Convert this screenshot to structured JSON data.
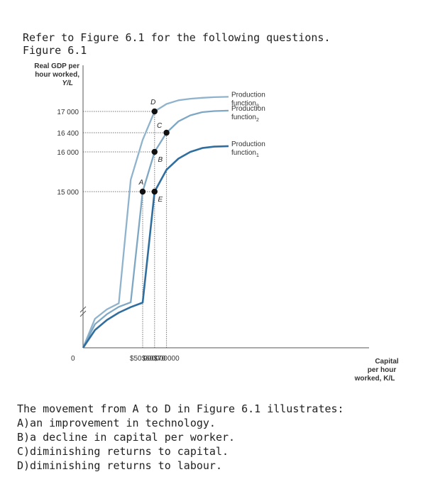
{
  "intro": {
    "line1": "Refer to Figure 6.1 for the following questions.",
    "line2": "Figure 6.1"
  },
  "chart_data": {
    "type": "line",
    "ylabel_lines": [
      "Real GDP per",
      "hour worked,",
      "Y/L"
    ],
    "xlabel_lines": [
      "Capital",
      "per hour",
      "worked, K/L"
    ],
    "origin_label": "0",
    "y_ticks": [
      {
        "value": 17000,
        "label": "17 000"
      },
      {
        "value": 16400,
        "label": "16 400"
      },
      {
        "value": 16000,
        "label": "16 000"
      },
      {
        "value": 15000,
        "label": "15 000"
      }
    ],
    "x_ticks": [
      {
        "value": 50000,
        "label": "$50 000"
      },
      {
        "value": 60000,
        "label": "$60 000"
      },
      {
        "value": 70000,
        "label": "$70 000"
      }
    ],
    "y_axis_break": true,
    "series": [
      {
        "name": "Production function",
        "subscript": "3",
        "color": "#8fb3cc",
        "x": [
          0,
          10000,
          20000,
          30000,
          40000,
          50000,
          60000,
          70000,
          80000,
          90000,
          100000,
          110000,
          122000
        ],
        "y": [
          0,
          9000,
          11900,
          13800,
          15300,
          16250,
          17000,
          17380,
          17570,
          17650,
          17700,
          17730,
          17750
        ]
      },
      {
        "name": "Production function",
        "subscript": "2",
        "color": "#7ea7c4",
        "x": [
          0,
          10000,
          20000,
          30000,
          40000,
          50000,
          60000,
          70000,
          80000,
          90000,
          100000,
          110000,
          122000
        ],
        "y": [
          0,
          7300,
          10400,
          12700,
          14100,
          15000,
          16000,
          16400,
          16720,
          16890,
          16980,
          17020,
          17040
        ]
      },
      {
        "name": "Production function",
        "subscript": "1",
        "color": "#2f6e9e",
        "x": [
          0,
          10000,
          20000,
          30000,
          40000,
          50000,
          60000,
          70000,
          80000,
          90000,
          100000,
          110000,
          122000
        ],
        "y": [
          0,
          5500,
          8600,
          10900,
          12600,
          14000,
          15000,
          15550,
          15830,
          16000,
          16080,
          16110,
          16120
        ]
      }
    ],
    "points": [
      {
        "label": "A",
        "x": 50000,
        "y": 15000
      },
      {
        "label": "B",
        "x": 60000,
        "y": 16000
      },
      {
        "label": "C",
        "x": 70000,
        "y": 16400
      },
      {
        "label": "D",
        "x": 60000,
        "y": 17000
      },
      {
        "label": "E",
        "x": 60000,
        "y": 15000
      }
    ]
  },
  "question": {
    "stem": "The movement from A to D in Figure 6.1 illustrates:",
    "options": [
      "A)an improvement in technology.",
      "B)a decline in capital per worker.",
      "C)diminishing returns to capital.",
      "D)diminishing returns to labour."
    ]
  }
}
